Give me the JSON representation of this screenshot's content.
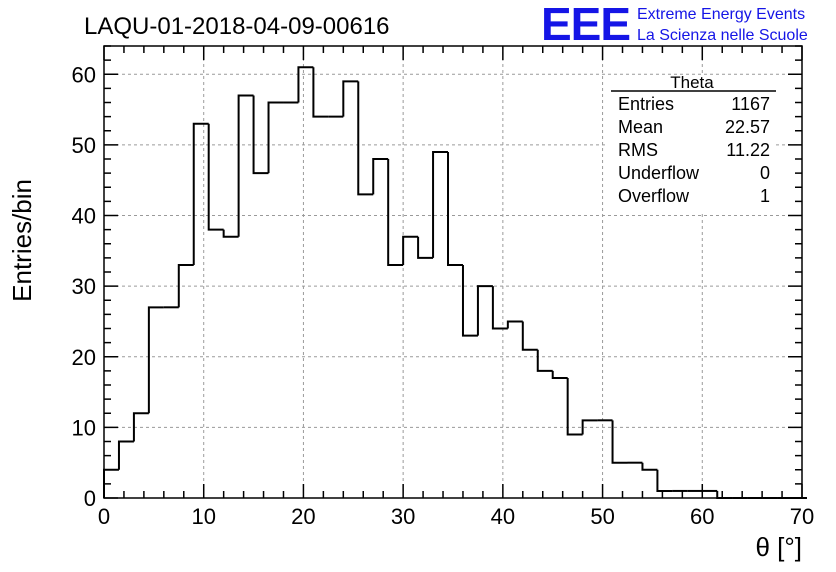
{
  "chart_data": {
    "type": "histogram",
    "title": "LAQU-01-2018-04-09-00616",
    "xlabel": "θ [°]",
    "ylabel": "Entries/bin",
    "xlim": [
      0,
      70
    ],
    "ylim": [
      0,
      64
    ],
    "x_ticks": [
      0,
      10,
      20,
      30,
      40,
      50,
      60,
      70
    ],
    "y_ticks": [
      0,
      10,
      20,
      30,
      40,
      50,
      60
    ],
    "grid": true,
    "bin_width": 1.5,
    "bin_start": 0,
    "counts": [
      4,
      8,
      12,
      27,
      27,
      33,
      53,
      38,
      37,
      57,
      46,
      56,
      56,
      61,
      54,
      54,
      59,
      43,
      48,
      33,
      37,
      34,
      49,
      33,
      23,
      30,
      24,
      25,
      21,
      18,
      17,
      9,
      11,
      11,
      5,
      5,
      4,
      1,
      1,
      1,
      1,
      0,
      0,
      0,
      0,
      0,
      0
    ]
  },
  "stats_box": {
    "title": "Theta",
    "rows": [
      {
        "label": "Entries",
        "value": "1167"
      },
      {
        "label": "Mean",
        "value": "22.57"
      },
      {
        "label": "RMS",
        "value": "11.22"
      },
      {
        "label": "Underflow",
        "value": "0"
      },
      {
        "label": "Overflow",
        "value": "1"
      }
    ]
  },
  "logo": {
    "mark": "EEE",
    "line1": "Extreme Energy Events",
    "line2": "La Scienza nelle Scuole",
    "color": "#1515e6"
  }
}
